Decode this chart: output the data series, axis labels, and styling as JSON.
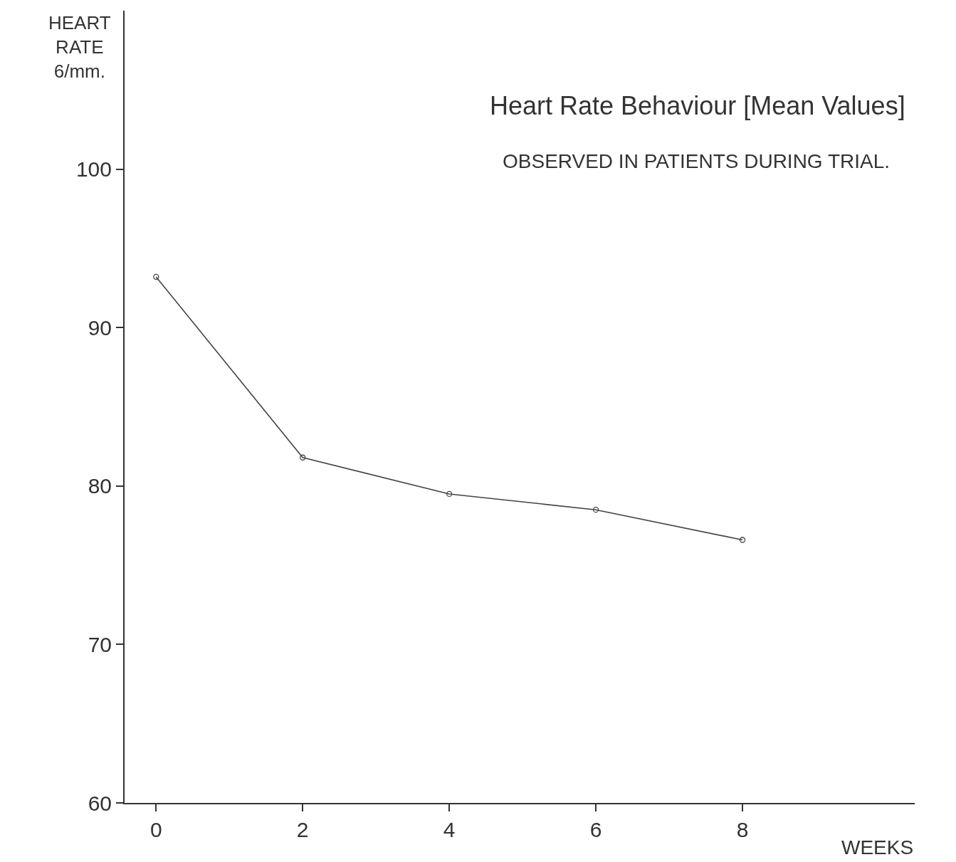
{
  "chart_data": {
    "type": "line",
    "title": "Heart Rate Behaviour [Mean Values]",
    "subtitle": "OBSERVED IN PATIENTS DURING TRIAL.",
    "xlabel": "WEEKS",
    "ylabel": "HEART RATE 6/mm.",
    "x": [
      0,
      2,
      4,
      6,
      8
    ],
    "series": [
      {
        "color": "#444444",
        "values": [
          93.2,
          81.8,
          79.5,
          78.5,
          76.6
        ]
      }
    ],
    "xlim": [
      -0.43,
      10.35
    ],
    "xticks": [
      0,
      2,
      4,
      6,
      8
    ],
    "ylim": [
      60,
      110
    ],
    "yticks": [
      60,
      70,
      80,
      90,
      100
    ],
    "marker": "circle",
    "line_style": "solid"
  }
}
